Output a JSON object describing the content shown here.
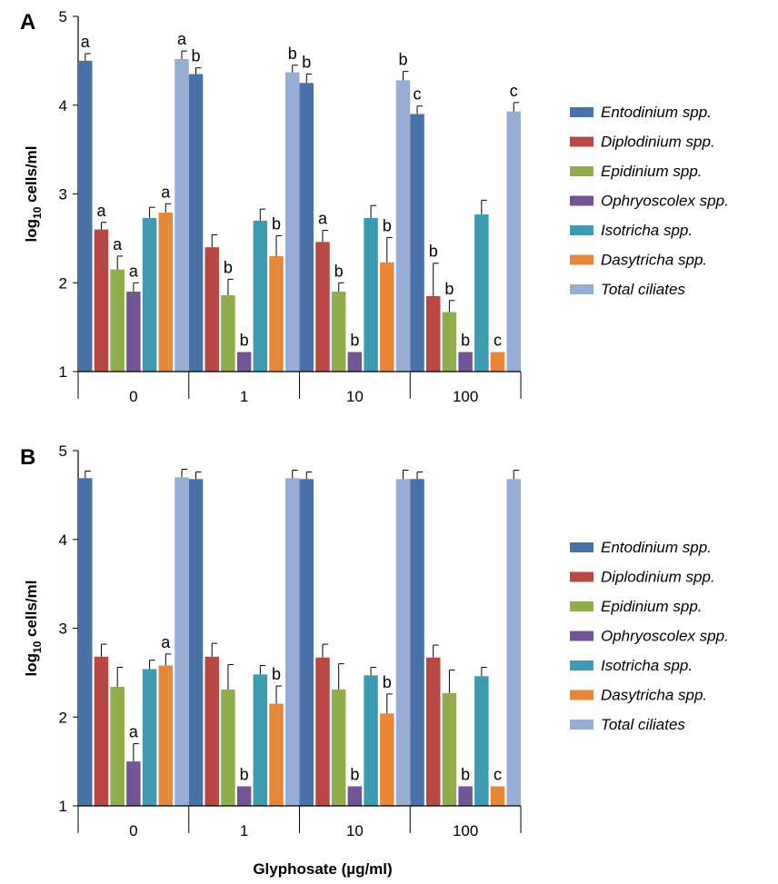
{
  "figure": {
    "xtitle": "Glyphosate (µg/ml)"
  },
  "chart_data": [
    {
      "type": "bar",
      "panel": "A",
      "ylabel_main": "log",
      "ylabel_sub": "10",
      "ylabel_rest": " cells/ml",
      "ylim": [
        1,
        5
      ],
      "yticks": [
        "1",
        "2",
        "3",
        "4",
        "5"
      ],
      "categories": [
        "0",
        "1",
        "10",
        "100"
      ],
      "legend_position": "right",
      "series": [
        {
          "name": "Entodinium spp.",
          "color": "#4A72A8",
          "values": [
            4.5,
            4.35,
            4.25,
            3.9
          ],
          "errors": [
            0.08,
            0.07,
            0.1,
            0.09
          ],
          "labels": [
            "a",
            "b",
            "b",
            "c"
          ]
        },
        {
          "name": "Diplodinium spp.",
          "color": "#B94744",
          "values": [
            2.6,
            2.4,
            2.46,
            1.85
          ],
          "errors": [
            0.08,
            0.14,
            0.13,
            0.37
          ],
          "labels": [
            "a",
            "",
            "a",
            "b"
          ]
        },
        {
          "name": "Epidinium spp.",
          "color": "#8FAE4B",
          "values": [
            2.15,
            1.86,
            1.9,
            1.67
          ],
          "errors": [
            0.15,
            0.18,
            0.1,
            0.13
          ],
          "labels": [
            "a",
            "b",
            "b",
            "b"
          ]
        },
        {
          "name": "Ophryoscolex spp.",
          "color": "#735494",
          "values": [
            1.9,
            1.22,
            1.22,
            1.22
          ],
          "errors": [
            0.1,
            0.0,
            0.0,
            0.0
          ],
          "labels": [
            "a",
            "b",
            "b",
            "b"
          ]
        },
        {
          "name": "Isotricha spp.",
          "color": "#3D9BB1",
          "values": [
            2.73,
            2.7,
            2.73,
            2.77
          ],
          "errors": [
            0.12,
            0.13,
            0.14,
            0.16
          ],
          "labels": [
            "",
            "",
            "",
            ""
          ]
        },
        {
          "name": "Dasytricha spp.",
          "color": "#E8873A",
          "values": [
            2.79,
            2.3,
            2.23,
            1.22
          ],
          "errors": [
            0.1,
            0.23,
            0.28,
            0.0
          ],
          "labels": [
            "a",
            "b",
            "b",
            "c"
          ]
        },
        {
          "name": "Total ciliates",
          "color": "#97ADD4",
          "values": [
            4.52,
            4.37,
            4.28,
            3.93
          ],
          "errors": [
            0.09,
            0.08,
            0.1,
            0.1
          ],
          "labels": [
            "a",
            "b",
            "b",
            "c"
          ]
        }
      ]
    },
    {
      "type": "bar",
      "panel": "B",
      "ylabel_main": "log",
      "ylabel_sub": "10",
      "ylabel_rest": " cells/ml",
      "ylim": [
        1,
        5
      ],
      "yticks": [
        "1",
        "2",
        "3",
        "4",
        "5"
      ],
      "categories": [
        "0",
        "1",
        "10",
        "100"
      ],
      "legend_position": "right",
      "series": [
        {
          "name": "Entodinium spp.",
          "color": "#4A72A8",
          "values": [
            4.69,
            4.68,
            4.68,
            4.68
          ],
          "errors": [
            0.08,
            0.08,
            0.08,
            0.08
          ],
          "labels": [
            "",
            "",
            "",
            ""
          ]
        },
        {
          "name": "Diplodinium spp.",
          "color": "#B94744",
          "values": [
            2.68,
            2.68,
            2.67,
            2.67
          ],
          "errors": [
            0.14,
            0.15,
            0.15,
            0.14
          ],
          "labels": [
            "",
            "",
            "",
            ""
          ]
        },
        {
          "name": "Epidinium spp.",
          "color": "#8FAE4B",
          "values": [
            2.34,
            2.31,
            2.31,
            2.27
          ],
          "errors": [
            0.22,
            0.28,
            0.29,
            0.26
          ],
          "labels": [
            "",
            "",
            "",
            ""
          ]
        },
        {
          "name": "Ophryoscolex spp.",
          "color": "#735494",
          "values": [
            1.5,
            1.22,
            1.22,
            1.22
          ],
          "errors": [
            0.2,
            0.0,
            0.0,
            0.0
          ],
          "labels": [
            "a",
            "b",
            "b",
            "b"
          ]
        },
        {
          "name": "Isotricha spp.",
          "color": "#3D9BB1",
          "values": [
            2.54,
            2.48,
            2.47,
            2.46
          ],
          "errors": [
            0.1,
            0.1,
            0.09,
            0.1
          ],
          "labels": [
            "",
            "",
            "",
            ""
          ]
        },
        {
          "name": "Dasytricha spp.",
          "color": "#E8873A",
          "values": [
            2.58,
            2.15,
            2.04,
            1.22
          ],
          "errors": [
            0.13,
            0.2,
            0.22,
            0.0
          ],
          "labels": [
            "a",
            "b",
            "b",
            "c"
          ]
        },
        {
          "name": "Total ciliates",
          "color": "#97ADD4",
          "values": [
            4.7,
            4.69,
            4.68,
            4.68
          ],
          "errors": [
            0.09,
            0.09,
            0.1,
            0.1
          ],
          "labels": [
            "",
            "",
            "",
            ""
          ]
        }
      ]
    }
  ]
}
